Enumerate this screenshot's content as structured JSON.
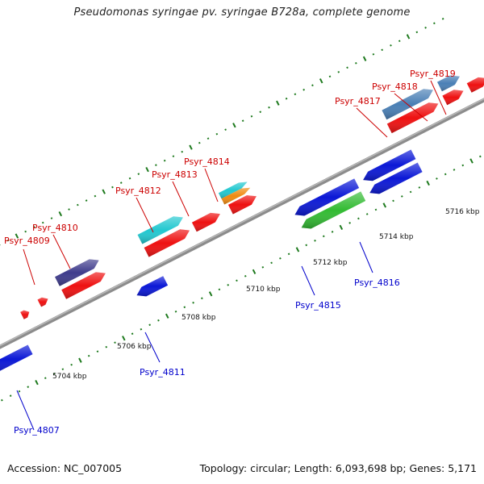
{
  "title": "Pseudomonas syringae pv. syringae B728a, complete genome",
  "footer": {
    "accession": "Accession: NC_007005",
    "summary": "Topology: circular; Length: 6,093,698 bp; Genes: 5,171"
  },
  "colors": {
    "backbone": "#8c8c8c",
    "tick": "#1e7a1e",
    "forward_label": "#cc0000",
    "reverse_label": "#0000cc"
  },
  "scale_labels": [
    "5704 kbp",
    "5706 kbp",
    "5708 kbp",
    "5710 kbp",
    "5712 kbp",
    "5714 kbp",
    "5716 kbp"
  ],
  "genes": [
    {
      "name": "Psyr_4807",
      "strand": "reverse",
      "color": "#0b18d6"
    },
    {
      "name": "Psyr_4809",
      "strand": "forward",
      "color": "#ee1111"
    },
    {
      "name": "Psyr_4810",
      "strand": "forward",
      "color": "#3f3c8c"
    },
    {
      "name": "Psyr_4811",
      "strand": "reverse",
      "color": "#0b18d6"
    },
    {
      "name": "Psyr_4812",
      "strand": "forward",
      "color": "#22c8d0"
    },
    {
      "name": "Psyr_4813",
      "strand": "forward",
      "color": "#ee1111"
    },
    {
      "name": "Psyr_4814",
      "strand": "forward",
      "color": "#f08a10"
    },
    {
      "name": "Psyr_4815",
      "strand": "reverse",
      "color": "#33bb33"
    },
    {
      "name": "Psyr_4816",
      "strand": "reverse",
      "color": "#0b18d6"
    },
    {
      "name": "Psyr_4817",
      "strand": "forward",
      "color": "#4a7fb5"
    },
    {
      "name": "Psyr_4818",
      "strand": "forward",
      "color": "#4a7fb5"
    },
    {
      "name": "Psyr_4819",
      "strand": "forward",
      "color": "#ee1111"
    }
  ],
  "cds_color": "#ee1111"
}
